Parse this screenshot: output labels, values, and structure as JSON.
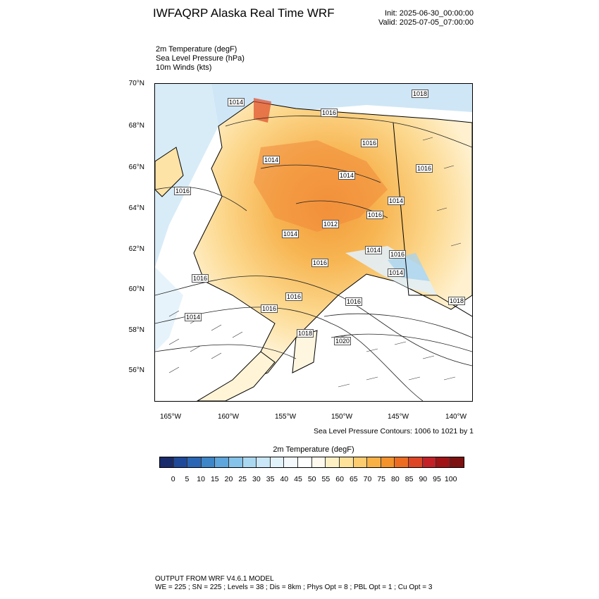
{
  "header": {
    "title": "IWFAQRP Alaska Real Time WRF",
    "init": "Init: 2025-06-30_00:00:00",
    "valid": "Valid: 2025-07-05_07:00:00"
  },
  "fields": [
    "2m Temperature   (degF)",
    "Sea Level Pressure   (hPa)",
    "10m Winds   (kts)"
  ],
  "map": {
    "lat_labels": [
      "70°N",
      "68°N",
      "66°N",
      "64°N",
      "62°N",
      "60°N",
      "58°N",
      "56°N"
    ],
    "lon_labels": [
      "165°W",
      "160°W",
      "155°W",
      "150°W",
      "145°W",
      "140°W"
    ],
    "isobar_labels": [
      "1018",
      "1014",
      "1016",
      "1016",
      "1016",
      "1016",
      "1014",
      "1014",
      "1016",
      "1012",
      "1014",
      "1014",
      "1014",
      "1014",
      "1016",
      "1016",
      "1016",
      "1016",
      "1016",
      "1020",
      "1018",
      "1018",
      "1014",
      "1016",
      "1016",
      "1016"
    ]
  },
  "slp_note": "Sea Level Pressure Contours: 1006 to 1021 by 1",
  "colorbar": {
    "title": "2m Temperature  (degF)",
    "labels": [
      "0",
      "5",
      "10",
      "15",
      "20",
      "25",
      "30",
      "35",
      "40",
      "45",
      "50",
      "55",
      "60",
      "65",
      "70",
      "75",
      "80",
      "85",
      "90",
      "95",
      "100"
    ],
    "colors": [
      "#1a2b6b",
      "#1f4a9a",
      "#2b66b4",
      "#3e86c8",
      "#5fa6dd",
      "#86c3ea",
      "#aad8f1",
      "#c9e7f6",
      "#e2f2fb",
      "#f3f9fd",
      "#ffffff",
      "#fffaed",
      "#fff0c4",
      "#ffe29a",
      "#fdcc6e",
      "#f9b146",
      "#f4922b",
      "#ec6d22",
      "#dd4525",
      "#c32127",
      "#a01417",
      "#7d1111"
    ]
  },
  "footer": {
    "line1": "OUTPUT FROM WRF V4.6.1 MODEL",
    "line2": "WE = 225 ; SN = 225 ; Levels = 38 ; Dis = 8km ; Phys Opt = 8 ; PBL Opt = 1 ; Cu Opt = 3"
  }
}
